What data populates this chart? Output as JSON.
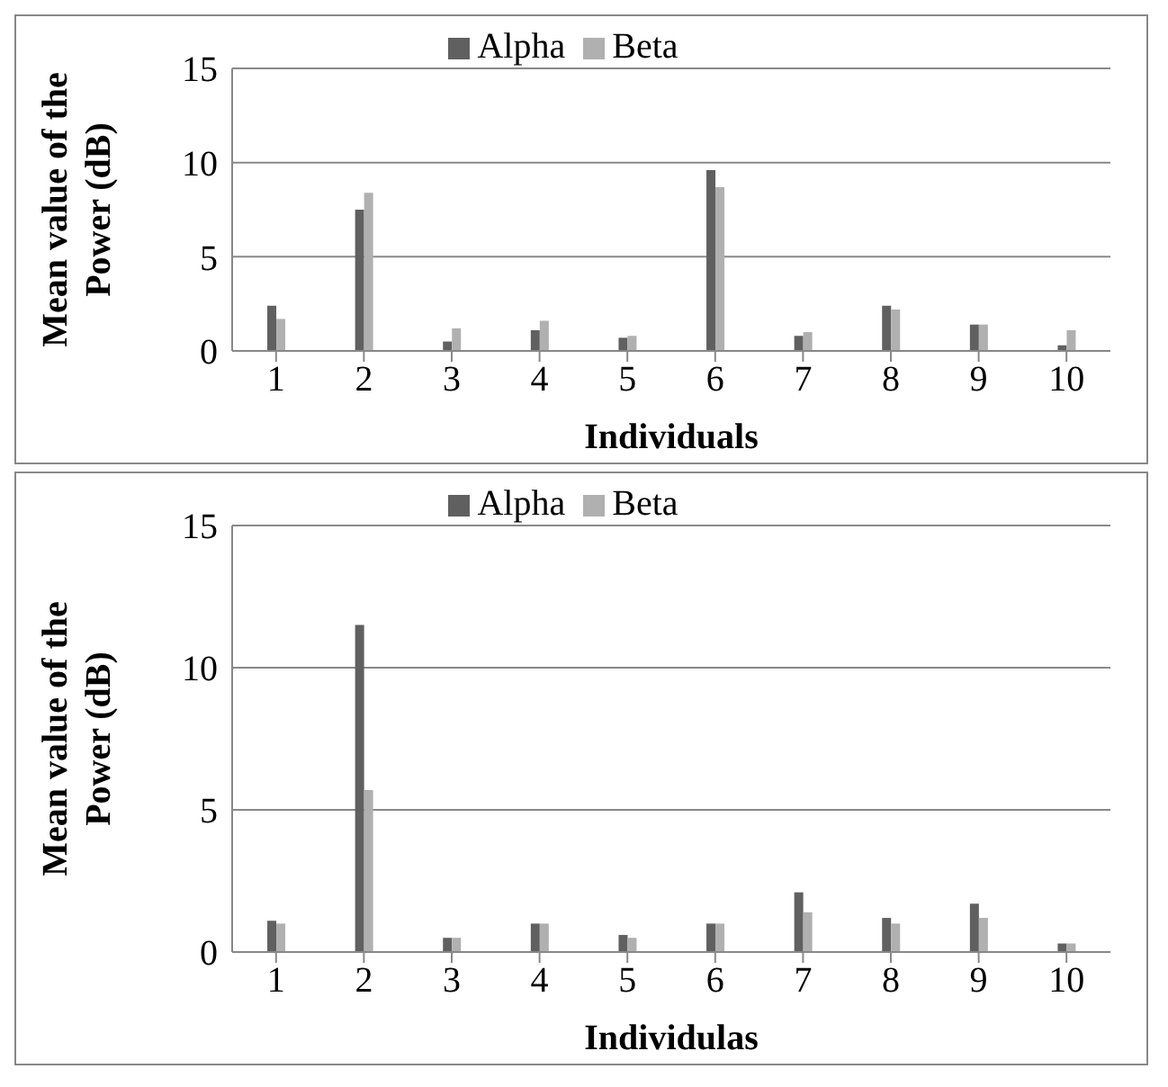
{
  "chart_data": [
    {
      "type": "bar",
      "categories": [
        "1",
        "2",
        "3",
        "4",
        "5",
        "6",
        "7",
        "8",
        "9",
        "10"
      ],
      "xlabel": "Individuals",
      "ylabel": "Mean value of the Power (dB)",
      "series": [
        {
          "name": "Alpha",
          "color": "#606060",
          "values": [
            2.4,
            7.5,
            0.5,
            1.1,
            0.7,
            9.6,
            0.8,
            2.4,
            1.4,
            0.3
          ]
        },
        {
          "name": "Beta",
          "color": "#b0b0b0",
          "values": [
            1.7,
            8.4,
            1.2,
            1.6,
            0.8,
            8.7,
            1.0,
            2.2,
            1.4,
            1.1
          ]
        }
      ],
      "ylim": [
        0,
        15
      ],
      "yticks": [
        0,
        5,
        10,
        15
      ],
      "grid": "y",
      "legend": "top"
    },
    {
      "type": "bar",
      "categories": [
        "1",
        "2",
        "3",
        "4",
        "5",
        "6",
        "7",
        "8",
        "9",
        "10"
      ],
      "xlabel": "Individulas",
      "ylabel": "Mean value of the Power (dB)",
      "series": [
        {
          "name": "Alpha",
          "color": "#606060",
          "values": [
            1.1,
            11.5,
            0.5,
            1.0,
            0.6,
            1.0,
            2.1,
            1.2,
            1.7,
            0.3
          ]
        },
        {
          "name": "Beta",
          "color": "#b0b0b0",
          "values": [
            1.0,
            5.7,
            0.5,
            1.0,
            0.5,
            1.0,
            1.4,
            1.0,
            1.2,
            0.3
          ]
        }
      ],
      "ylim": [
        0,
        15
      ],
      "yticks": [
        0,
        5,
        10,
        15
      ],
      "grid": "y",
      "legend": "top"
    }
  ]
}
